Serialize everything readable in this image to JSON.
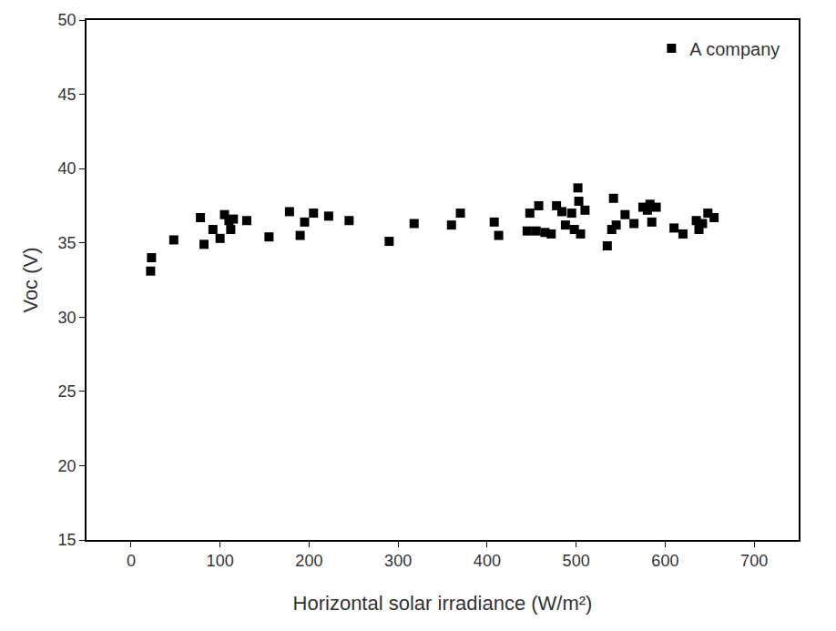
{
  "chart_data": {
    "type": "scatter",
    "x_label": "Horizontal solar irradiance (W/m²)",
    "y_label": "Voc (V)",
    "series": [
      {
        "name": "A company",
        "color": "#000000",
        "marker": "square",
        "x": [
          22,
          23,
          48,
          78,
          82,
          92,
          100,
          105,
          110,
          112,
          115,
          130,
          155,
          178,
          190,
          195,
          205,
          222,
          245,
          290,
          318,
          360,
          370,
          408,
          413,
          445,
          448,
          455,
          458,
          465,
          472,
          478,
          484,
          488,
          495,
          498,
          502,
          503,
          505,
          510,
          535,
          540,
          542,
          545,
          555,
          565,
          575,
          580,
          583,
          585,
          590,
          610,
          620,
          635,
          638,
          642,
          648,
          655
        ],
        "values": [
          33.1,
          34.0,
          35.2,
          36.7,
          34.9,
          35.9,
          35.3,
          36.9,
          36.5,
          35.9,
          36.6,
          36.5,
          35.4,
          37.1,
          35.5,
          36.4,
          37.0,
          36.8,
          36.5,
          35.1,
          36.3,
          36.2,
          37.0,
          36.4,
          35.5,
          35.8,
          37.0,
          35.8,
          37.5,
          35.7,
          35.6,
          37.5,
          37.1,
          36.2,
          37.0,
          35.9,
          38.7,
          37.8,
          35.6,
          37.2,
          34.8,
          35.9,
          38.0,
          36.2,
          36.9,
          36.3,
          37.4,
          37.2,
          37.6,
          36.4,
          37.4,
          36.0,
          35.6,
          36.5,
          35.9,
          36.3,
          37.0,
          36.7
        ]
      }
    ],
    "xlim": [
      -50,
      750
    ],
    "xticks": [
      0,
      100,
      200,
      300,
      400,
      500,
      600,
      700
    ],
    "ylim": [
      15,
      50
    ],
    "yticks": [
      15,
      20,
      25,
      30,
      35,
      40,
      45,
      50
    ],
    "grid": false,
    "legend": "upper right"
  }
}
